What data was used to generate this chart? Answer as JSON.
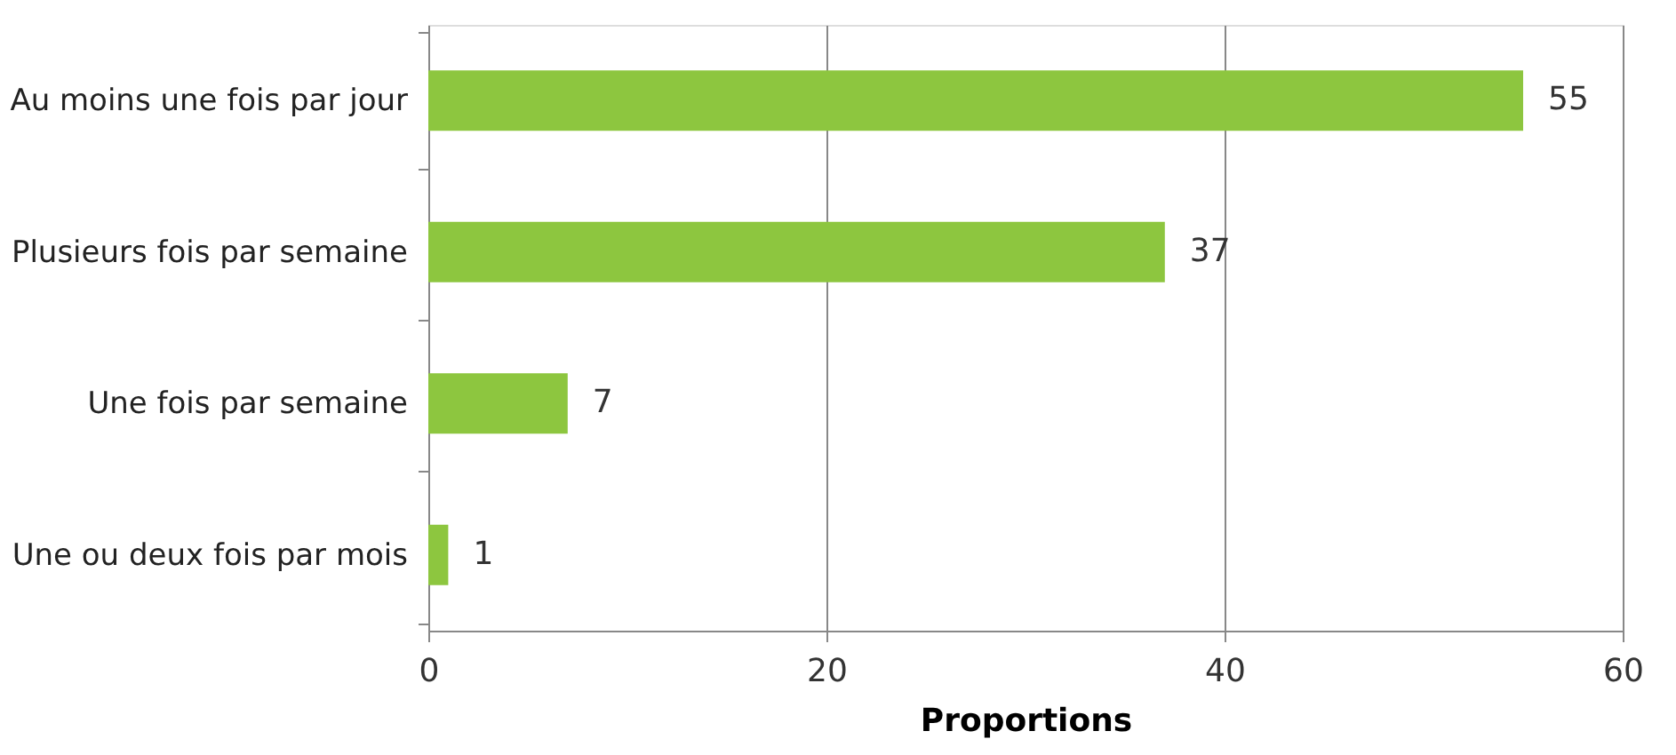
{
  "chart_data": {
    "type": "bar",
    "orientation": "horizontal",
    "xlabel": "Proportions",
    "categories": [
      "Au moins une fois par jour",
      "Plusieurs fois par semaine",
      "Une fois par semaine",
      "Une ou deux fois par mois"
    ],
    "values": [
      55,
      37,
      7,
      1
    ],
    "color": "#8dc63f",
    "xlim": [
      0,
      60
    ],
    "xticks": [
      0,
      20,
      40,
      60
    ],
    "grid": "x",
    "data_labels": true
  }
}
